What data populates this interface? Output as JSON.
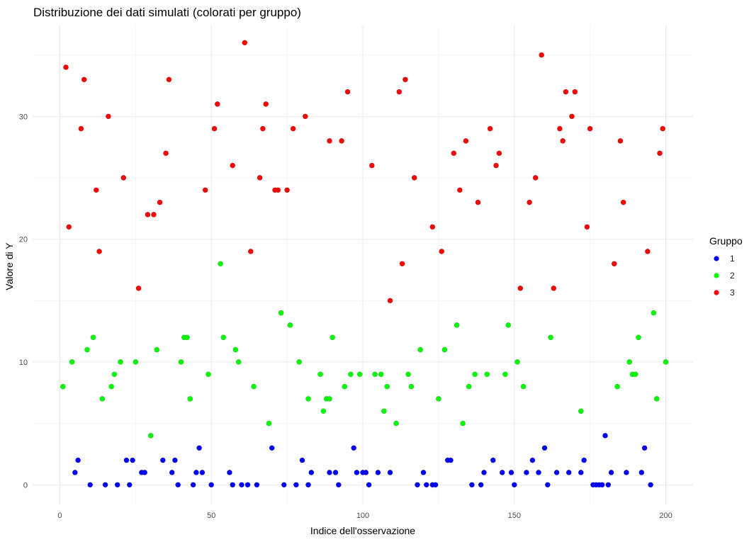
{
  "chart_data": {
    "type": "scatter",
    "title": "Distribuzione dei dati simulati (colorati per gruppo)",
    "xlabel": "Indice dell'osservazione",
    "ylabel": "Valore di Y",
    "xlim": [
      -9,
      209
    ],
    "ylim": [
      -1.6,
      37.4
    ],
    "x_ticks": [
      0,
      50,
      100,
      150,
      200
    ],
    "y_ticks": [
      0,
      10,
      20,
      30
    ],
    "grid": true,
    "legend": {
      "title": "Gruppo",
      "placement": "right"
    },
    "series": [
      {
        "name": "1",
        "color": "#0000ff",
        "points": [
          [
            5,
            1
          ],
          [
            6,
            2
          ],
          [
            10,
            0
          ],
          [
            15,
            0
          ],
          [
            19,
            0
          ],
          [
            22,
            2
          ],
          [
            23,
            0
          ],
          [
            24,
            2
          ],
          [
            27,
            1
          ],
          [
            28,
            1
          ],
          [
            34,
            2
          ],
          [
            37,
            1
          ],
          [
            38,
            2
          ],
          [
            39,
            0
          ],
          [
            44,
            0
          ],
          [
            45,
            1
          ],
          [
            46,
            3
          ],
          [
            47,
            1
          ],
          [
            50,
            0
          ],
          [
            56,
            1
          ],
          [
            57,
            0
          ],
          [
            60,
            0
          ],
          [
            62,
            0
          ],
          [
            65,
            0
          ],
          [
            70,
            3
          ],
          [
            74,
            0
          ],
          [
            78,
            0
          ],
          [
            80,
            2
          ],
          [
            82,
            0
          ],
          [
            83,
            1
          ],
          [
            89,
            1
          ],
          [
            91,
            1
          ],
          [
            92,
            0
          ],
          [
            97,
            3
          ],
          [
            98,
            1
          ],
          [
            100,
            1
          ],
          [
            101,
            1
          ],
          [
            102,
            0
          ],
          [
            105,
            1
          ],
          [
            109,
            1
          ],
          [
            118,
            0
          ],
          [
            120,
            1
          ],
          [
            121,
            0
          ],
          [
            123,
            0
          ],
          [
            124,
            0
          ],
          [
            128,
            2
          ],
          [
            129,
            2
          ],
          [
            136,
            0
          ],
          [
            139,
            0
          ],
          [
            140,
            1
          ],
          [
            143,
            2
          ],
          [
            146,
            1
          ],
          [
            149,
            1
          ],
          [
            150,
            0
          ],
          [
            154,
            1
          ],
          [
            156,
            2
          ],
          [
            158,
            1
          ],
          [
            160,
            3
          ],
          [
            161,
            0
          ],
          [
            164,
            1
          ],
          [
            168,
            1
          ],
          [
            172,
            1
          ],
          [
            173,
            2
          ],
          [
            176,
            0
          ],
          [
            177,
            0
          ],
          [
            178,
            0
          ],
          [
            179,
            0
          ],
          [
            180,
            4
          ],
          [
            181,
            0
          ],
          [
            182,
            1
          ],
          [
            187,
            1
          ],
          [
            192,
            1
          ],
          [
            193,
            3
          ],
          [
            195,
            0
          ]
        ]
      },
      {
        "name": "2",
        "color": "#00ff00",
        "points": [
          [
            1,
            8
          ],
          [
            4,
            10
          ],
          [
            9,
            11
          ],
          [
            11,
            12
          ],
          [
            14,
            7
          ],
          [
            17,
            8
          ],
          [
            18,
            9
          ],
          [
            20,
            10
          ],
          [
            25,
            10
          ],
          [
            30,
            4
          ],
          [
            32,
            11
          ],
          [
            40,
            10
          ],
          [
            41,
            12
          ],
          [
            42,
            12
          ],
          [
            43,
            7
          ],
          [
            49,
            9
          ],
          [
            53,
            18
          ],
          [
            54,
            12
          ],
          [
            58,
            11
          ],
          [
            59,
            10
          ],
          [
            64,
            8
          ],
          [
            69,
            5
          ],
          [
            73,
            14
          ],
          [
            76,
            13
          ],
          [
            79,
            10
          ],
          [
            82,
            7
          ],
          [
            86,
            9
          ],
          [
            87,
            6
          ],
          [
            88,
            7
          ],
          [
            89,
            7
          ],
          [
            90,
            12
          ],
          [
            94,
            8
          ],
          [
            96,
            9
          ],
          [
            99,
            9
          ],
          [
            104,
            9
          ],
          [
            106,
            9
          ],
          [
            107,
            6
          ],
          [
            108,
            8
          ],
          [
            111,
            5
          ],
          [
            115,
            9
          ],
          [
            116,
            8
          ],
          [
            119,
            11
          ],
          [
            125,
            7
          ],
          [
            127,
            11
          ],
          [
            131,
            13
          ],
          [
            133,
            5
          ],
          [
            135,
            8
          ],
          [
            137,
            9
          ],
          [
            141,
            9
          ],
          [
            147,
            9
          ],
          [
            148,
            13
          ],
          [
            151,
            10
          ],
          [
            153,
            8
          ],
          [
            162,
            12
          ],
          [
            172,
            6
          ],
          [
            184,
            8
          ],
          [
            188,
            10
          ],
          [
            189,
            9
          ],
          [
            190,
            9
          ],
          [
            191,
            12
          ],
          [
            196,
            14
          ],
          [
            197,
            7
          ],
          [
            200,
            10
          ]
        ]
      },
      {
        "name": "3",
        "color": "#ff0000",
        "points": [
          [
            2,
            34
          ],
          [
            3,
            21
          ],
          [
            7,
            29
          ],
          [
            8,
            33
          ],
          [
            12,
            24
          ],
          [
            13,
            19
          ],
          [
            16,
            30
          ],
          [
            21,
            25
          ],
          [
            26,
            16
          ],
          [
            29,
            22
          ],
          [
            31,
            22
          ],
          [
            33,
            23
          ],
          [
            35,
            27
          ],
          [
            36,
            33
          ],
          [
            48,
            24
          ],
          [
            51,
            29
          ],
          [
            52,
            31
          ],
          [
            57,
            26
          ],
          [
            61,
            36
          ],
          [
            63,
            19
          ],
          [
            66,
            25
          ],
          [
            67,
            29
          ],
          [
            68,
            31
          ],
          [
            71,
            24
          ],
          [
            72,
            24
          ],
          [
            75,
            24
          ],
          [
            77,
            29
          ],
          [
            81,
            30
          ],
          [
            89,
            28
          ],
          [
            93,
            28
          ],
          [
            95,
            32
          ],
          [
            103,
            26
          ],
          [
            109,
            15
          ],
          [
            112,
            32
          ],
          [
            113,
            18
          ],
          [
            114,
            33
          ],
          [
            117,
            25
          ],
          [
            123,
            21
          ],
          [
            126,
            19
          ],
          [
            130,
            27
          ],
          [
            132,
            24
          ],
          [
            134,
            28
          ],
          [
            138,
            23
          ],
          [
            142,
            29
          ],
          [
            144,
            26
          ],
          [
            145,
            27
          ],
          [
            152,
            16
          ],
          [
            155,
            23
          ],
          [
            157,
            25
          ],
          [
            159,
            35
          ],
          [
            163,
            16
          ],
          [
            165,
            29
          ],
          [
            166,
            28
          ],
          [
            167,
            32
          ],
          [
            169,
            30
          ],
          [
            170,
            32
          ],
          [
            174,
            21
          ],
          [
            175,
            29
          ],
          [
            183,
            18
          ],
          [
            185,
            28
          ],
          [
            186,
            23
          ],
          [
            194,
            19
          ],
          [
            198,
            27
          ],
          [
            199,
            29
          ]
        ]
      }
    ]
  }
}
